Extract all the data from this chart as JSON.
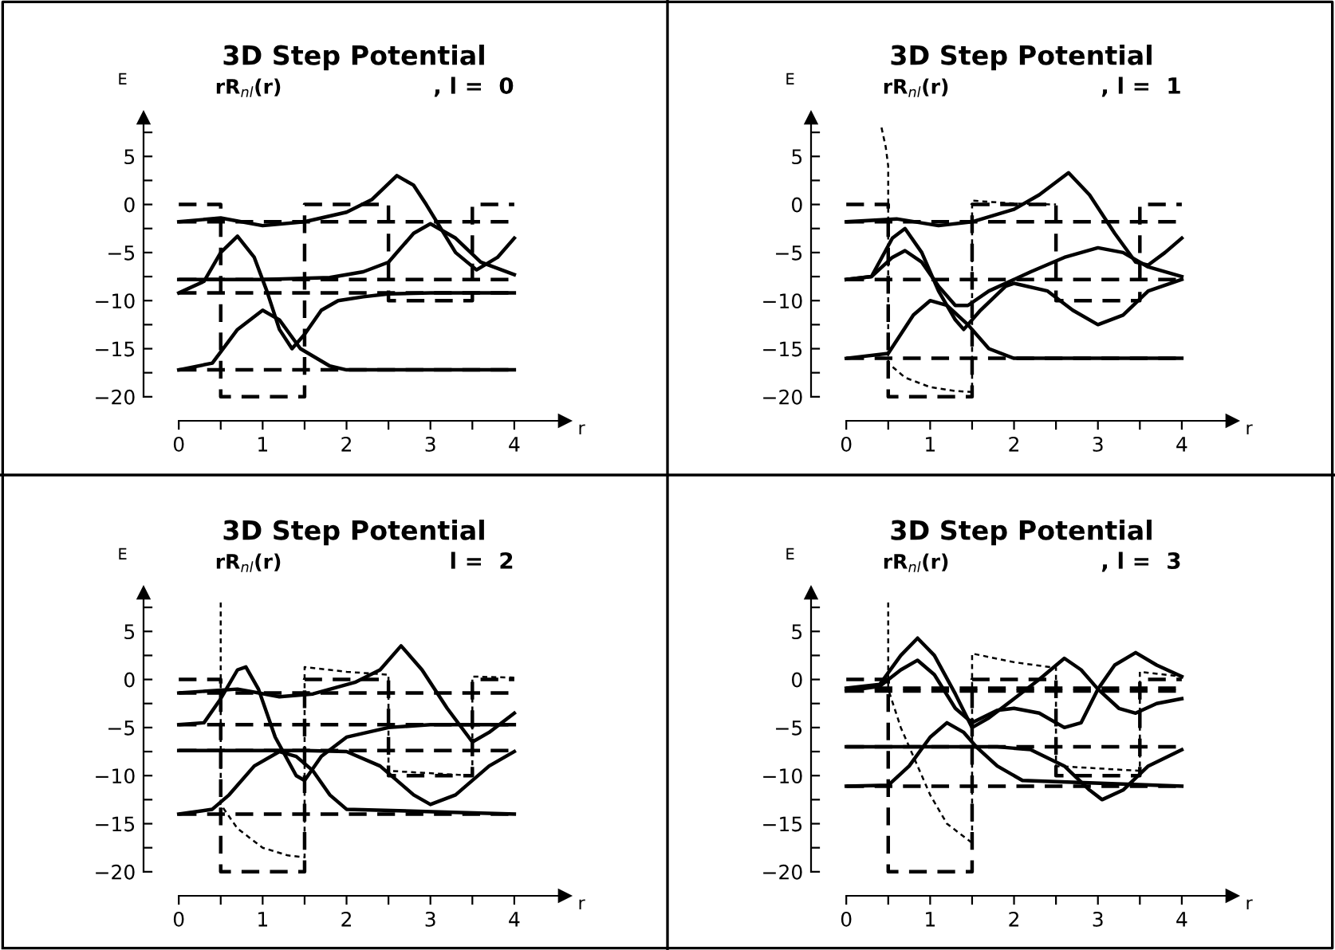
{
  "chart_data": [
    {
      "type": "line",
      "title": "3D Step Potential",
      "ylabel": "E",
      "xlabel": "r",
      "subtitle": "rR$_{nl}$(r)",
      "annotations": [
        ", l =  0"
      ],
      "xlim": [
        -0.42,
        4.6
      ],
      "ylim": [
        -22.5,
        9
      ],
      "xticks": [
        0,
        {
          "value": 0.5,
          "label": null
        },
        1,
        {
          "value": 1.5,
          "label": null
        },
        2,
        {
          "value": 2.5,
          "label": null
        },
        3,
        {
          "value": 3.5,
          "label": null
        },
        4
      ],
      "yticks": [
        -20,
        {
          "value": -17.5,
          "label": null
        },
        -15,
        {
          "value": -12.5,
          "label": null
        },
        -10,
        {
          "value": -7.5,
          "label": null
        },
        -5,
        {
          "value": -2.5,
          "label": null
        },
        0,
        {
          "value": 2.5,
          "label": null
        },
        5,
        {
          "value": 7.5,
          "label": null
        }
      ],
      "grid": false,
      "legend": false,
      "series": [
        {
          "type": "step",
          "line_style": "dashed",
          "color": "#000000",
          "x": [
            0,
            0.5,
            1.5,
            2.5,
            3.5,
            4
          ],
          "values": [
            0,
            -20,
            0,
            -10,
            0,
            0
          ]
        },
        {
          "type": "line",
          "line_style": "dashed",
          "color": "#000000",
          "x": [
            0,
            4
          ],
          "values": [
            -1.8,
            -1.8
          ]
        },
        {
          "type": "line",
          "line_style": "dashed",
          "color": "#000000",
          "x": [
            0,
            4
          ],
          "values": [
            -7.8,
            -7.8
          ]
        },
        {
          "type": "line",
          "line_style": "dashed",
          "color": "#000000",
          "x": [
            0,
            4
          ],
          "values": [
            -9.2,
            -9.2
          ]
        },
        {
          "type": "line",
          "line_style": "dashed",
          "color": "#000000",
          "x": [
            0,
            4
          ],
          "values": [
            -17.2,
            -17.2
          ]
        },
        {
          "type": "line",
          "line_style": "solid",
          "color": "#000000",
          "x": [
            0,
            0.4,
            0.7,
            1.0,
            1.2,
            1.45,
            1.8,
            2.0,
            4
          ],
          "values": [
            -17.2,
            -16.5,
            -13,
            -11,
            -12,
            -15,
            -16.8,
            -17.2,
            -17.2
          ]
        },
        {
          "type": "line",
          "line_style": "solid",
          "color": "#000000",
          "x": [
            0,
            0.3,
            0.5,
            0.7,
            0.9,
            1.05,
            1.2,
            1.35,
            1.5,
            1.7,
            1.9,
            2.2,
            2.5,
            3.0,
            4
          ],
          "values": [
            -9.2,
            -8,
            -5,
            -3.3,
            -5.5,
            -9,
            -13,
            -15,
            -13.5,
            -11,
            -10,
            -9.6,
            -9.3,
            -9.2,
            -9.2
          ]
        },
        {
          "type": "line",
          "line_style": "solid",
          "color": "#000000",
          "x": [
            0,
            1.0,
            1.8,
            2.2,
            2.5,
            2.8,
            3.0,
            3.3,
            3.6,
            4
          ],
          "values": [
            -7.8,
            -7.8,
            -7.6,
            -7,
            -6,
            -3,
            -2,
            -3.5,
            -6,
            -7.3
          ]
        },
        {
          "type": "line",
          "line_style": "solid",
          "color": "#000000",
          "x": [
            0,
            0.5,
            1.0,
            1.5,
            2.0,
            2.3,
            2.6,
            2.8,
            2.95,
            3.3,
            3.55,
            3.8,
            4
          ],
          "values": [
            -1.8,
            -1.4,
            -2.2,
            -1.8,
            -0.8,
            0.5,
            3,
            2,
            0,
            -5,
            -6.8,
            -5.5,
            -3.5
          ]
        }
      ]
    },
    {
      "type": "line",
      "title": "3D Step Potential",
      "ylabel": "E",
      "xlabel": "r",
      "subtitle": "rR$_{nl}$(r)",
      "annotations": [
        ", l =  1"
      ],
      "xlim": [
        -0.42,
        4.6
      ],
      "ylim": [
        -22.5,
        9
      ],
      "xticks": [
        0,
        {
          "value": 0.5,
          "label": null
        },
        1,
        {
          "value": 1.5,
          "label": null
        },
        2,
        {
          "value": 2.5,
          "label": null
        },
        3,
        {
          "value": 3.5,
          "label": null
        },
        4
      ],
      "yticks": [
        -20,
        {
          "value": -17.5,
          "label": null
        },
        -15,
        {
          "value": -12.5,
          "label": null
        },
        -10,
        {
          "value": -7.5,
          "label": null
        },
        -5,
        {
          "value": -2.5,
          "label": null
        },
        0,
        {
          "value": 2.5,
          "label": null
        },
        5,
        {
          "value": 7.5,
          "label": null
        }
      ],
      "grid": false,
      "legend": false,
      "series": [
        {
          "type": "step",
          "line_style": "dashed",
          "color": "#000000",
          "x": [
            0,
            0.5,
            1.5,
            2.5,
            3.5,
            4
          ],
          "values": [
            0,
            -20,
            0,
            -10,
            0,
            0
          ]
        },
        {
          "type": "line",
          "line_style": "dotted",
          "color": "#000000",
          "x": [
            0.42,
            0.47,
            0.5,
            0.5,
            0.7,
            1.0,
            1.3,
            1.5,
            1.5,
            2.0,
            2.5
          ],
          "values": [
            8,
            6,
            4,
            -16.5,
            -18,
            -19,
            -19.4,
            -19.5,
            0.4,
            0.1,
            0
          ]
        },
        {
          "type": "line",
          "line_style": "dashed",
          "color": "#000000",
          "x": [
            0,
            4
          ],
          "values": [
            -1.8,
            -1.8
          ]
        },
        {
          "type": "line",
          "line_style": "dashed",
          "color": "#000000",
          "x": [
            0,
            4
          ],
          "values": [
            -7.8,
            -7.8
          ]
        },
        {
          "type": "line",
          "line_style": "dashed",
          "color": "#000000",
          "x": [
            0,
            4
          ],
          "values": [
            -16,
            -16
          ]
        },
        {
          "type": "line",
          "line_style": "solid",
          "color": "#000000",
          "x": [
            0,
            0.5,
            0.8,
            1.0,
            1.2,
            1.45,
            1.7,
            2.0,
            4
          ],
          "values": [
            -16,
            -15.5,
            -11.5,
            -10,
            -10.5,
            -12.5,
            -15,
            -16,
            -16
          ]
        },
        {
          "type": "line",
          "line_style": "solid",
          "color": "#000000",
          "x": [
            0,
            0.3,
            0.55,
            0.7,
            0.9,
            1.1,
            1.3,
            1.4,
            1.6,
            1.9,
            2.0,
            2.4,
            2.7,
            3.0,
            3.3,
            3.6,
            4
          ],
          "values": [
            -7.8,
            -7.5,
            -3.5,
            -2.5,
            -5,
            -9,
            -12,
            -13,
            -11,
            -8.5,
            -8.2,
            -9,
            -11,
            -12.5,
            -11.5,
            -9,
            -7.8
          ]
        },
        {
          "type": "line",
          "line_style": "solid",
          "color": "#000000",
          "x": [
            0,
            0.3,
            0.55,
            0.7,
            0.9,
            1.1,
            1.3,
            1.45,
            1.7,
            2.2,
            2.6,
            3.0,
            3.3,
            3.6,
            4
          ],
          "values": [
            -7.8,
            -7.5,
            -5.5,
            -4.8,
            -6,
            -8.5,
            -10.5,
            -10.5,
            -9,
            -7,
            -5.5,
            -4.5,
            -5,
            -6.5,
            -7.5
          ]
        },
        {
          "type": "line",
          "line_style": "solid",
          "color": "#000000",
          "x": [
            0,
            0.6,
            1.1,
            1.5,
            2.0,
            2.3,
            2.65,
            2.9,
            3.2,
            3.45,
            3.6,
            3.8,
            4
          ],
          "values": [
            -1.8,
            -1.5,
            -2.2,
            -1.8,
            -0.5,
            1,
            3.3,
            1,
            -3,
            -6,
            -6.3,
            -5,
            -3.5
          ]
        }
      ]
    },
    {
      "type": "line",
      "title": "3D Step Potential",
      "ylabel": "E",
      "xlabel": "r",
      "subtitle": "rR$_{nl}$(r)",
      "annotations": [
        "l =  2"
      ],
      "xlim": [
        -0.42,
        4.6
      ],
      "ylim": [
        -22.5,
        9
      ],
      "xticks": [
        0,
        {
          "value": 0.5,
          "label": null
        },
        1,
        {
          "value": 1.5,
          "label": null
        },
        2,
        {
          "value": 2.5,
          "label": null
        },
        3,
        {
          "value": 3.5,
          "label": null
        },
        4
      ],
      "yticks": [
        -20,
        {
          "value": -17.5,
          "label": null
        },
        -15,
        {
          "value": -12.5,
          "label": null
        },
        -10,
        {
          "value": -7.5,
          "label": null
        },
        -5,
        {
          "value": -2.5,
          "label": null
        },
        0,
        {
          "value": 2.5,
          "label": null
        },
        5,
        {
          "value": 7.5,
          "label": null
        }
      ],
      "grid": false,
      "legend": false,
      "series": [
        {
          "type": "step",
          "line_style": "dashed",
          "color": "#000000",
          "x": [
            0,
            0.5,
            1.5,
            2.5,
            3.5,
            4
          ],
          "values": [
            0,
            -20,
            0,
            -10,
            0,
            0
          ]
        },
        {
          "type": "line",
          "line_style": "dotted",
          "color": "#000000",
          "x": [
            0.5,
            0.5,
            0.7,
            1.0,
            1.3,
            1.5,
            1.5,
            2.0,
            2.5,
            2.5,
            3.5,
            3.5,
            4
          ],
          "values": [
            8,
            -13,
            -15.5,
            -17.5,
            -18.3,
            -18.5,
            1.3,
            0.8,
            0.5,
            -9.5,
            -10,
            0.3,
            0.2
          ]
        },
        {
          "type": "line",
          "line_style": "dashed",
          "color": "#000000",
          "x": [
            0,
            4
          ],
          "values": [
            -1.4,
            -1.4
          ]
        },
        {
          "type": "line",
          "line_style": "dashed",
          "color": "#000000",
          "x": [
            0,
            4
          ],
          "values": [
            -4.7,
            -4.7
          ]
        },
        {
          "type": "line",
          "line_style": "dashed",
          "color": "#000000",
          "x": [
            0,
            4
          ],
          "values": [
            -7.4,
            -7.4
          ]
        },
        {
          "type": "line",
          "line_style": "dashed",
          "color": "#000000",
          "x": [
            0,
            4
          ],
          "values": [
            -14,
            -14
          ]
        },
        {
          "type": "line",
          "line_style": "solid",
          "color": "#000000",
          "x": [
            0,
            0.4,
            0.6,
            0.9,
            1.2,
            1.4,
            1.6,
            1.8,
            2.0,
            4
          ],
          "values": [
            -14,
            -13.5,
            -12,
            -9,
            -7.5,
            -8,
            -9.5,
            -12,
            -13.5,
            -14
          ]
        },
        {
          "type": "line",
          "line_style": "solid",
          "color": "#000000",
          "x": [
            0,
            1.5,
            2.0,
            2.4,
            2.8,
            3.0,
            3.3,
            3.7,
            4
          ],
          "values": [
            -7.4,
            -7.4,
            -7.5,
            -9,
            -12,
            -13,
            -12,
            -9,
            -7.5
          ]
        },
        {
          "type": "line",
          "line_style": "solid",
          "color": "#000000",
          "x": [
            0,
            0.3,
            0.5,
            0.7,
            0.8,
            0.95,
            1.15,
            1.4,
            1.5,
            1.7,
            2.0,
            2.5,
            3.0,
            4
          ],
          "values": [
            -4.7,
            -4.5,
            -2,
            1,
            1.3,
            -1,
            -6,
            -10,
            -10.5,
            -8,
            -6,
            -5,
            -4.7,
            -4.7
          ]
        },
        {
          "type": "line",
          "line_style": "solid",
          "color": "#000000",
          "x": [
            0,
            0.7,
            1.2,
            1.6,
            2.1,
            2.4,
            2.65,
            2.9,
            3.2,
            3.5,
            3.7,
            4
          ],
          "values": [
            -1.4,
            -1,
            -1.8,
            -1.5,
            -0.3,
            1,
            3.5,
            1,
            -3,
            -6.5,
            -5.5,
            -3.5
          ]
        }
      ]
    },
    {
      "type": "line",
      "title": "3D Step Potential",
      "ylabel": "E",
      "xlabel": "r",
      "subtitle": "rR$_{nl}$(r)",
      "annotations": [
        ", l =  3"
      ],
      "xlim": [
        -0.42,
        4.6
      ],
      "ylim": [
        -22.5,
        9
      ],
      "xticks": [
        0,
        {
          "value": 0.5,
          "label": null
        },
        1,
        {
          "value": 1.5,
          "label": null
        },
        2,
        {
          "value": 2.5,
          "label": null
        },
        3,
        {
          "value": 3.5,
          "label": null
        },
        4
      ],
      "yticks": [
        -20,
        {
          "value": -17.5,
          "label": null
        },
        -15,
        {
          "value": -12.5,
          "label": null
        },
        -10,
        {
          "value": -7.5,
          "label": null
        },
        -5,
        {
          "value": -2.5,
          "label": null
        },
        0,
        {
          "value": 2.5,
          "label": null
        },
        5,
        {
          "value": 7.5,
          "label": null
        }
      ],
      "grid": false,
      "legend": false,
      "series": [
        {
          "type": "step",
          "line_style": "dashed",
          "color": "#000000",
          "x": [
            0,
            0.5,
            1.5,
            2.5,
            3.5,
            4
          ],
          "values": [
            0,
            -20,
            0,
            -10,
            0,
            0
          ]
        },
        {
          "type": "line",
          "line_style": "dotted",
          "color": "#000000",
          "x": [
            0.5,
            0.5,
            0.65,
            0.8,
            1.0,
            1.2,
            1.5,
            1.5,
            2.0,
            2.5,
            2.5,
            3.5,
            3.5,
            4
          ],
          "values": [
            8,
            -1,
            -5,
            -8,
            -12,
            -15,
            -17,
            2.7,
            1.8,
            1.2,
            -9,
            -9.5,
            0.8,
            0.3
          ]
        },
        {
          "type": "line",
          "line_style": "dashed",
          "color": "#000000",
          "x": [
            0,
            4
          ],
          "values": [
            -0.9,
            -0.9
          ]
        },
        {
          "type": "line",
          "line_style": "dashed",
          "color": "#000000",
          "x": [
            0,
            4
          ],
          "values": [
            -1.2,
            -1.2
          ]
        },
        {
          "type": "line",
          "line_style": "dashed",
          "color": "#000000",
          "x": [
            0,
            4
          ],
          "values": [
            -7,
            -7
          ]
        },
        {
          "type": "line",
          "line_style": "dashed",
          "color": "#000000",
          "x": [
            0,
            4
          ],
          "values": [
            -11.1,
            -11.1
          ]
        },
        {
          "type": "line",
          "line_style": "solid",
          "color": "#000000",
          "x": [
            0,
            0.5,
            0.75,
            1.0,
            1.2,
            1.4,
            1.55,
            1.8,
            2.1,
            4
          ],
          "values": [
            -11.1,
            -11,
            -9,
            -6,
            -4.5,
            -5.5,
            -7,
            -9,
            -10.5,
            -11.1
          ]
        },
        {
          "type": "line",
          "line_style": "solid",
          "color": "#000000",
          "x": [
            0,
            1.8,
            2.2,
            2.6,
            2.9,
            3.05,
            3.3,
            3.6,
            4
          ],
          "values": [
            -7,
            -7,
            -7.3,
            -9,
            -11.5,
            -12.5,
            -11.5,
            -9,
            -7.3
          ]
        },
        {
          "type": "line",
          "line_style": "solid",
          "color": "#000000",
          "x": [
            0,
            0.4,
            0.65,
            0.85,
            1.05,
            1.3,
            1.5,
            1.7,
            2.0,
            2.3,
            2.6,
            2.8,
            3.0,
            3.25,
            3.45,
            3.7,
            4
          ],
          "values": [
            -0.9,
            -0.5,
            2.5,
            4.3,
            2.5,
            -1.5,
            -5,
            -4,
            -2,
            0,
            2.2,
            1,
            -1,
            -3,
            -3.5,
            -2.5,
            -2
          ]
        },
        {
          "type": "line",
          "line_style": "solid",
          "color": "#000000",
          "x": [
            0,
            0.4,
            0.65,
            0.85,
            1.05,
            1.3,
            1.5,
            1.8,
            2.0,
            2.3,
            2.6,
            2.8,
            3.0,
            3.2,
            3.45,
            3.7,
            4
          ],
          "values": [
            -1.2,
            -0.7,
            1,
            2,
            0.5,
            -3,
            -4.5,
            -3.2,
            -3,
            -3.5,
            -5,
            -4.5,
            -1,
            1.5,
            2.8,
            1.5,
            0.3
          ]
        }
      ]
    }
  ]
}
